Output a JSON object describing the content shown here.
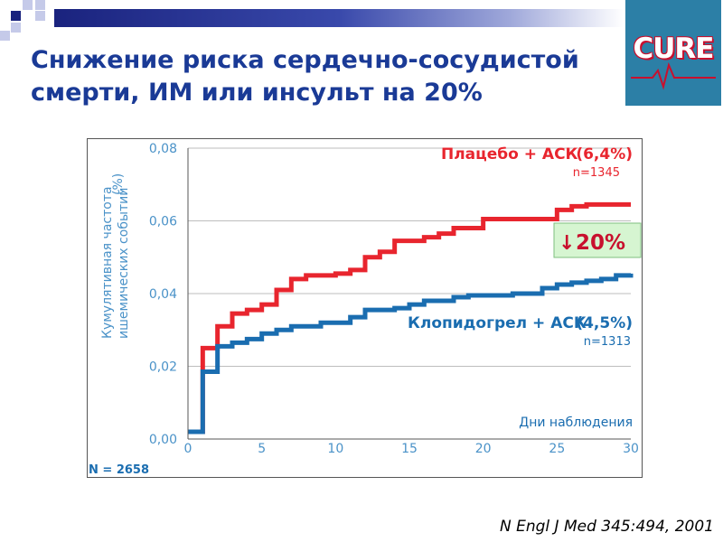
{
  "title_line1": "Снижение риска сердечно-сосудистой",
  "title_line2": "смерти, ИМ или инсульт на 20%",
  "logo": {
    "text": "CURE"
  },
  "citation": "N Engl J Med 345:494, 2001",
  "colors": {
    "title": "#1a3a96",
    "placebo": "#e8252e",
    "clopidogrel": "#1a6db0",
    "axis_text": "#4a92c8",
    "badge_bg": "#d6f5d1",
    "badge_text": "#c8102e"
  },
  "chart_data": {
    "type": "line",
    "step": true,
    "x_ticks": [
      "0",
      "5",
      "10",
      "15",
      "20",
      "25",
      "30"
    ],
    "y_ticks": [
      "0,00",
      "0,02",
      "0,04",
      "0,06",
      "0,08"
    ],
    "xlim": [
      0,
      30
    ],
    "ylim": [
      0,
      0.08
    ],
    "grid": "horizontal",
    "xlabel": "Дни наблюдения",
    "ylabel_line1": "Кумулятивная частота",
    "ylabel_line2": "ишемических событий",
    "ylabel_unit": "(%)",
    "n_total": "N = 2658",
    "series": [
      {
        "name": "Плацебо + АСК",
        "pct": "(6,4%)",
        "n": "n=1345",
        "color": "#e8252e",
        "x": [
          0,
          1,
          2,
          3,
          4,
          5,
          6,
          7,
          8,
          9,
          10,
          11,
          12,
          13,
          14,
          15,
          16,
          17,
          18,
          19,
          20,
          21,
          22,
          23,
          24,
          25,
          26,
          27,
          28,
          29,
          30
        ],
        "y": [
          0.002,
          0.025,
          0.031,
          0.0345,
          0.0355,
          0.037,
          0.041,
          0.044,
          0.045,
          0.045,
          0.0455,
          0.0465,
          0.05,
          0.0515,
          0.0545,
          0.0545,
          0.0555,
          0.0565,
          0.058,
          0.058,
          0.0605,
          0.0605,
          0.0605,
          0.0605,
          0.0605,
          0.063,
          0.064,
          0.0645,
          0.0645,
          0.0645,
          0.0645
        ]
      },
      {
        "name": "Клопидогрел + АСК",
        "pct": "(4,5%)",
        "n": "n=1313",
        "color": "#1a6db0",
        "x": [
          0,
          1,
          2,
          3,
          4,
          5,
          6,
          7,
          8,
          9,
          10,
          11,
          12,
          13,
          14,
          15,
          16,
          17,
          18,
          19,
          20,
          21,
          22,
          23,
          24,
          25,
          26,
          27,
          28,
          29,
          30
        ],
        "y": [
          0.002,
          0.0185,
          0.0255,
          0.0265,
          0.0275,
          0.029,
          0.03,
          0.031,
          0.031,
          0.032,
          0.032,
          0.0335,
          0.0355,
          0.0355,
          0.036,
          0.037,
          0.038,
          0.038,
          0.039,
          0.0395,
          0.0395,
          0.0395,
          0.04,
          0.04,
          0.0415,
          0.0425,
          0.043,
          0.0435,
          0.044,
          0.045,
          0.0455
        ]
      }
    ],
    "badge": {
      "arrow": "↓",
      "value": "20%"
    }
  }
}
